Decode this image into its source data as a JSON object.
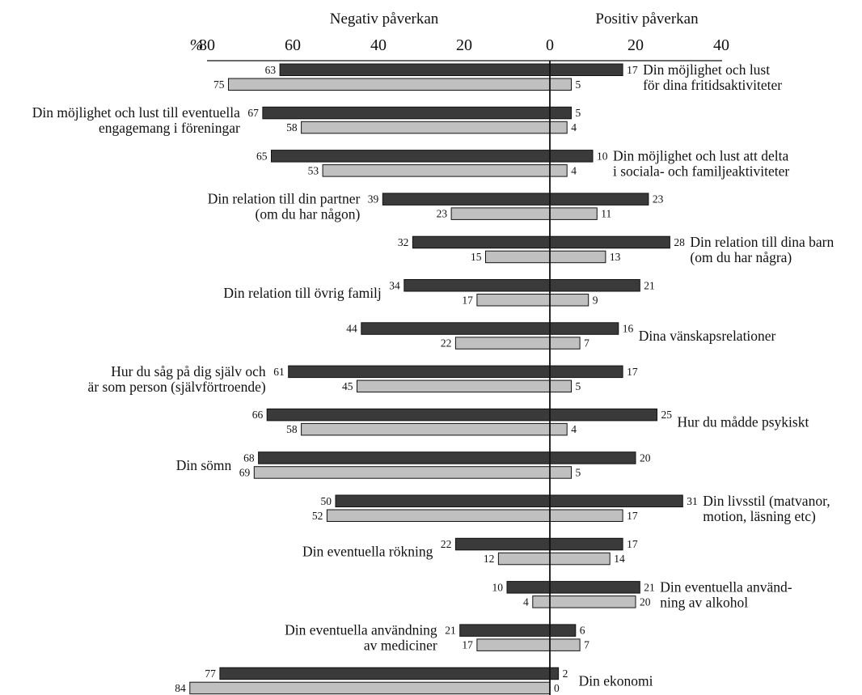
{
  "chart_data": {
    "type": "bar",
    "orientation": "diverging-horizontal",
    "header_left": "Negativ påverkan",
    "header_right": "Positiv påverkan",
    "unit_label": "%",
    "xlim": [
      -80,
      40
    ],
    "ticks": [
      {
        "value": -80,
        "label": "80"
      },
      {
        "value": -60,
        "label": "60"
      },
      {
        "value": -40,
        "label": "40"
      },
      {
        "value": -20,
        "label": "20"
      },
      {
        "value": 0,
        "label": "0"
      },
      {
        "value": 20,
        "label": "20"
      },
      {
        "value": 40,
        "label": "40"
      }
    ],
    "colors": {
      "series1": "#3a3a3a",
      "series2": "#c0c0c0",
      "stroke": "#111111"
    },
    "series": [
      {
        "values_negative": [
          63,
          67,
          65,
          39,
          32,
          34,
          44,
          61,
          66,
          68,
          50,
          22,
          10,
          21,
          77
        ],
        "values_positive": [
          17,
          5,
          10,
          23,
          28,
          21,
          16,
          17,
          25,
          20,
          31,
          17,
          21,
          6,
          2
        ]
      },
      {
        "values_negative": [
          75,
          58,
          53,
          23,
          15,
          17,
          22,
          45,
          58,
          69,
          52,
          12,
          4,
          17,
          84
        ],
        "values_positive": [
          5,
          4,
          4,
          11,
          13,
          9,
          7,
          5,
          4,
          5,
          17,
          14,
          20,
          7,
          0
        ]
      }
    ],
    "categories": [
      {
        "side": "right",
        "lines": [
          "Din möjlighet och lust",
          "för dina fritidsaktiviteter"
        ]
      },
      {
        "side": "left",
        "lines": [
          "Din möjlighet och lust till eventuella",
          "engagemang i föreningar"
        ]
      },
      {
        "side": "right",
        "lines": [
          "Din möjlighet och lust att delta",
          "i sociala- och familjeaktiviteter"
        ]
      },
      {
        "side": "left",
        "lines": [
          "Din relation till din partner",
          "(om du har någon)"
        ]
      },
      {
        "side": "right",
        "lines": [
          "Din relation till dina barn",
          "(om du har några)"
        ]
      },
      {
        "side": "left",
        "lines": [
          "Din relation till övrig familj"
        ]
      },
      {
        "side": "right",
        "lines": [
          "Dina vänskapsrelationer"
        ]
      },
      {
        "side": "left",
        "lines": [
          "Hur du såg på dig själv och",
          "är som person (självförtroende)"
        ]
      },
      {
        "side": "right",
        "lines": [
          "Hur du mådde psykiskt"
        ]
      },
      {
        "side": "left",
        "lines": [
          "Din sömn"
        ]
      },
      {
        "side": "right",
        "lines": [
          "Din livsstil (matvanor,",
          "motion, läsning etc)"
        ]
      },
      {
        "side": "left",
        "lines": [
          "Din eventuella rökning"
        ]
      },
      {
        "side": "right",
        "lines": [
          "Din eventuella använd-",
          "ning av alkohol"
        ]
      },
      {
        "side": "left",
        "lines": [
          "Din eventuella användning",
          "av mediciner"
        ]
      },
      {
        "side": "right",
        "lines": [
          "Din ekonomi"
        ]
      }
    ]
  }
}
